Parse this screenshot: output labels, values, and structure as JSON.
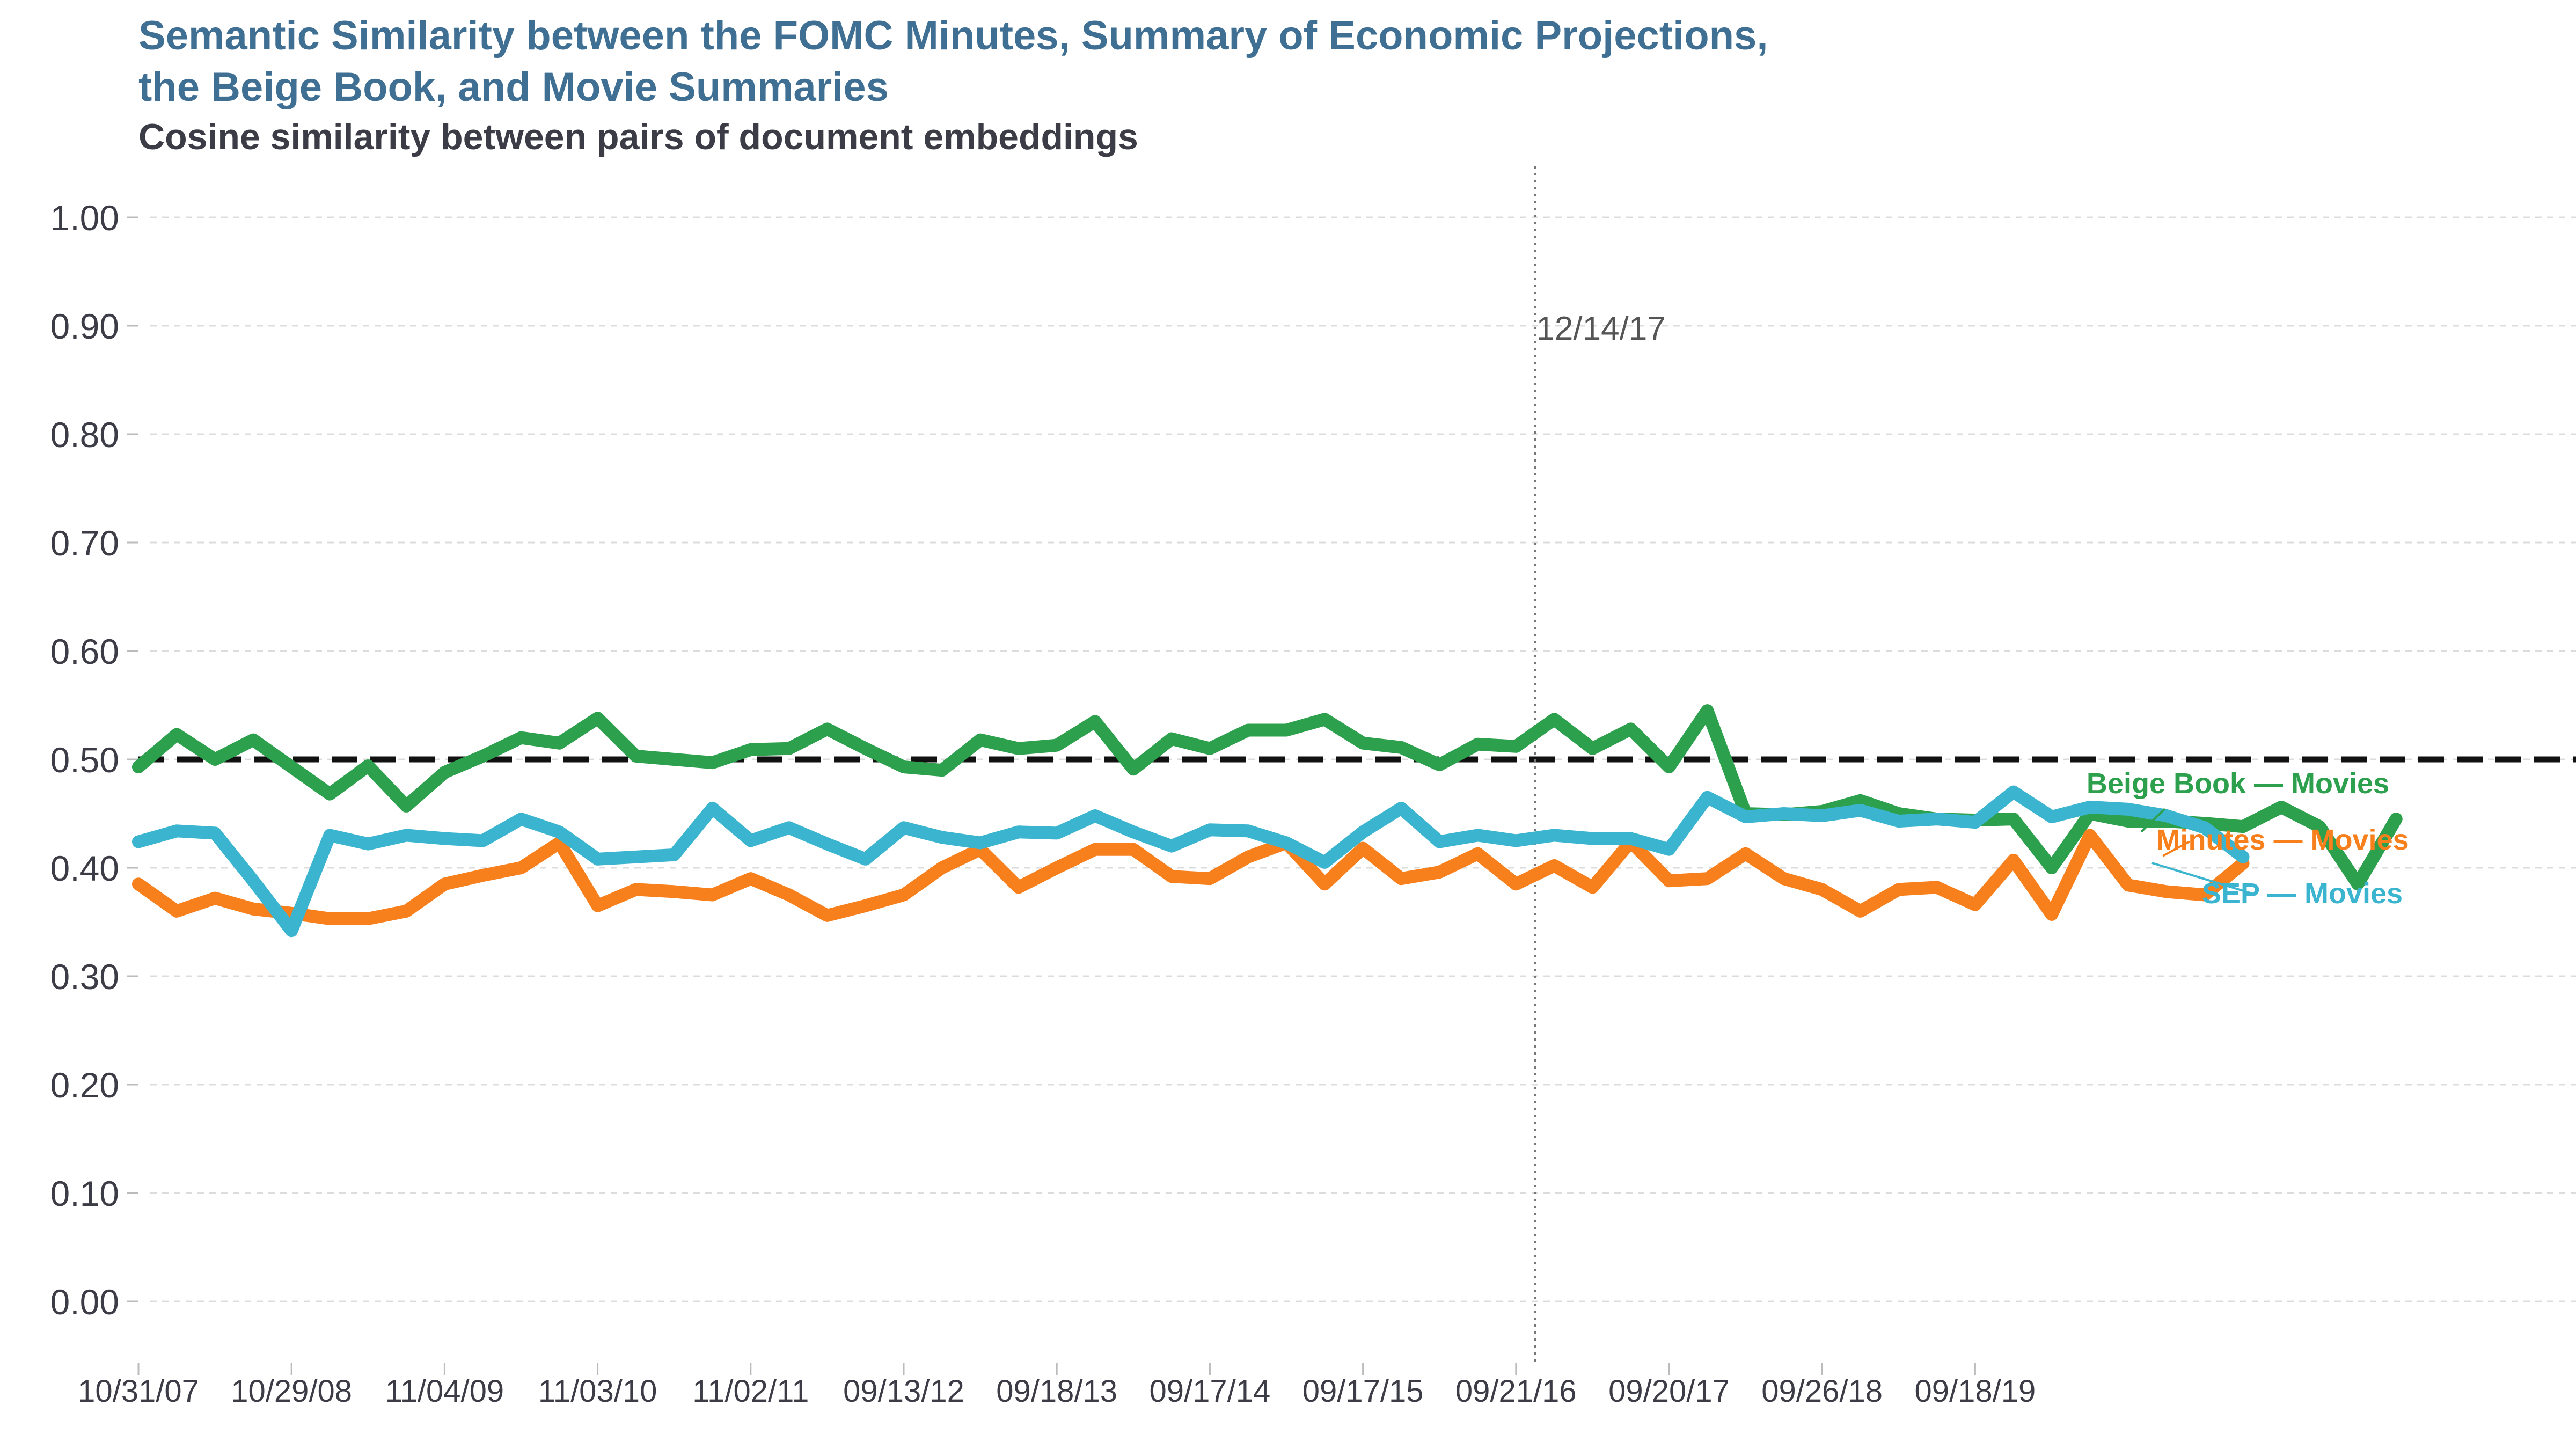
{
  "header": {
    "title_line1": "Semantic Similarity between the FOMC Minutes, Summary of Economic Projections,",
    "title_line2": "the Beige Book, and Movie Summaries",
    "subtitle": "Cosine similarity between pairs of document embeddings"
  },
  "chart_data": {
    "type": "line",
    "title": "Semantic Similarity between the FOMC Minutes, Summary of Economic Projections, the Beige Book, and Movie Summaries",
    "subtitle": "Cosine similarity between pairs of document embeddings",
    "xlabel": "",
    "ylabel": "",
    "ylim": [
      -0.05,
      1.05
    ],
    "yticks": [
      0.0,
      0.1,
      0.2,
      0.3,
      0.4,
      0.5,
      0.6,
      0.7,
      0.8,
      0.9,
      1.0
    ],
    "ytick_labels": [
      "0.00",
      "0.10",
      "0.20",
      "0.30",
      "0.40",
      "0.50",
      "0.60",
      "0.70",
      "0.80",
      "0.90",
      "1.00"
    ],
    "x_tick_labels": [
      "10/31/07",
      "10/29/08",
      "11/04/09",
      "11/03/10",
      "11/02/11",
      "09/13/12",
      "09/18/13",
      "09/17/14",
      "09/17/15",
      "09/21/16",
      "09/20/17",
      "09/26/18",
      "09/18/19"
    ],
    "x_tick_positions": [
      0,
      4,
      8,
      12,
      16,
      20,
      24,
      28,
      32,
      36,
      40,
      44,
      48
    ],
    "x_range": [
      0,
      61
    ],
    "grid": "horizontal dashed",
    "reference_line": {
      "y": 0.5,
      "style": "dashed",
      "color": "#111111"
    },
    "vertical_marker": {
      "x": 36.5,
      "label": "12/14/17",
      "style": "dotted"
    },
    "legend": "inline labels at the right end of each series",
    "series": [
      {
        "name": "Beige Book — Movies",
        "color": "#2ca04c",
        "values": [
          0.493,
          0.523,
          0.5,
          0.518,
          0.493,
          0.468,
          0.494,
          0.457,
          0.488,
          0.503,
          0.52,
          0.515,
          0.538,
          0.503,
          0.5,
          0.497,
          0.509,
          0.51,
          0.528,
          0.51,
          0.493,
          0.49,
          0.518,
          0.51,
          0.513,
          0.535,
          0.491,
          0.519,
          0.51,
          0.527,
          0.527,
          0.537,
          0.515,
          0.511,
          0.495,
          0.514,
          0.512,
          0.537,
          0.51,
          0.528,
          0.493,
          0.545,
          0.45,
          0.449,
          0.452,
          0.462,
          0.45,
          0.445,
          0.444,
          0.445,
          0.4,
          0.45,
          0.443,
          0.443,
          0.441,
          0.438,
          0.456,
          0.438,
          0.385,
          0.445
        ]
      },
      {
        "name": "Minutes — Movies",
        "color": "#f77f1c",
        "values": [
          0.385,
          0.36,
          0.372,
          0.362,
          0.358,
          0.353,
          0.353,
          0.36,
          0.385,
          0.393,
          0.4,
          0.423,
          0.365,
          0.38,
          0.378,
          0.375,
          0.39,
          0.375,
          0.356,
          0.365,
          0.375,
          0.4,
          0.417,
          0.382,
          0.4,
          0.417,
          0.417,
          0.392,
          0.39,
          0.41,
          0.423,
          0.385,
          0.418,
          0.39,
          0.396,
          0.413,
          0.385,
          0.402,
          0.382,
          0.424,
          0.388,
          0.39,
          0.413,
          0.39,
          0.38,
          0.36,
          0.38,
          0.382,
          0.366,
          0.407,
          0.357,
          0.43,
          0.384,
          0.378,
          0.375,
          0.404
        ]
      },
      {
        "name": "SEP — Movies",
        "color": "#3bb5cf",
        "values": [
          0.424,
          0.434,
          0.432,
          0.388,
          0.342,
          0.43,
          0.422,
          0.43,
          0.427,
          0.425,
          0.445,
          0.433,
          0.408,
          0.41,
          0.412,
          0.455,
          0.425,
          0.437,
          0.422,
          0.408,
          0.437,
          0.428,
          0.423,
          0.433,
          0.432,
          0.448,
          0.433,
          0.42,
          0.435,
          0.434,
          0.423,
          0.405,
          0.433,
          0.455,
          0.424,
          0.43,
          0.425,
          0.43,
          0.427,
          0.427,
          0.417,
          0.465,
          0.447,
          0.45,
          0.448,
          0.453,
          0.443,
          0.445,
          0.442,
          0.47,
          0.447,
          0.456,
          0.454,
          0.448,
          0.437,
          0.41
        ]
      }
    ]
  }
}
